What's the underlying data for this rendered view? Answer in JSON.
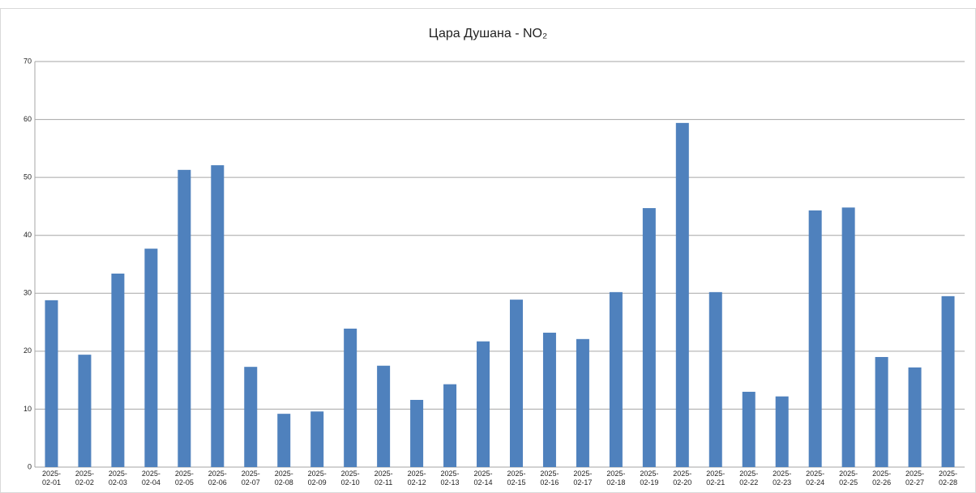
{
  "chart_data": {
    "type": "bar",
    "title": "Цара Душана - NO₂",
    "categories": [
      "2025-02-01",
      "2025-02-02",
      "2025-02-03",
      "2025-02-04",
      "2025-02-05",
      "2025-02-06",
      "2025-02-07",
      "2025-02-08",
      "2025-02-09",
      "2025-02-10",
      "2025-02-11",
      "2025-02-12",
      "2025-02-13",
      "2025-02-14",
      "2025-02-15",
      "2025-02-16",
      "2025-02-17",
      "2025-02-18",
      "2025-02-19",
      "2025-02-20",
      "2025-02-21",
      "2025-02-22",
      "2025-02-23",
      "2025-02-24",
      "2025-02-25",
      "2025-02-26",
      "2025-02-27",
      "2025-02-28"
    ],
    "values": [
      28.8,
      19.4,
      33.4,
      37.7,
      51.3,
      52.1,
      17.3,
      9.2,
      9.6,
      23.9,
      17.5,
      11.6,
      14.3,
      21.7,
      28.9,
      23.2,
      22.1,
      30.2,
      44.7,
      59.4,
      30.2,
      13.0,
      12.2,
      44.3,
      44.8,
      19.0,
      17.2,
      29.5
    ],
    "color": "#4f81bd",
    "ylim": [
      0,
      70
    ],
    "yticks": [
      0,
      10,
      20,
      30,
      40,
      50,
      60,
      70
    ],
    "grid": true
  }
}
